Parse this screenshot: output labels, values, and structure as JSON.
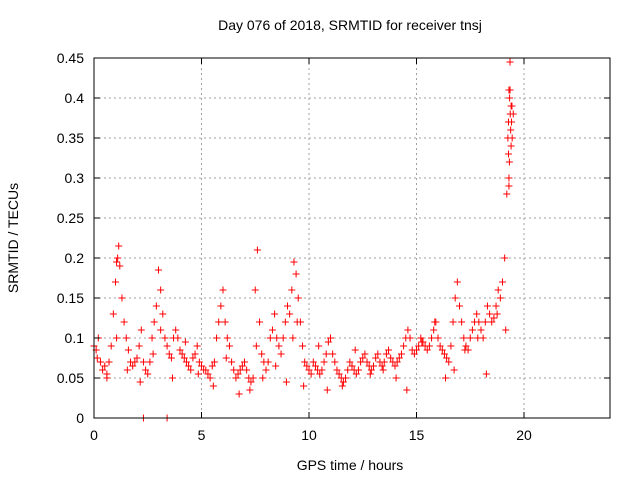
{
  "chart_data": {
    "type": "scatter",
    "title": "Day 076 of 2018, SRMTID for receiver tnsj",
    "xlabel": "GPS time / hours",
    "ylabel": "SRMTID / TECUs",
    "xlim": [
      0,
      24
    ],
    "ylim": [
      0,
      0.45
    ],
    "xticks": [
      0,
      5,
      10,
      15,
      20
    ],
    "xtick_labels": [
      "0",
      "5",
      "10",
      "15",
      "20"
    ],
    "yticks": [
      0,
      0.05,
      0.1,
      0.15,
      0.2,
      0.25,
      0.3,
      0.35,
      0.4,
      0.45
    ],
    "ytick_labels": [
      "0",
      "0.05",
      "0.1",
      "0.15",
      "0.2",
      "0.25",
      "0.3",
      "0.35",
      "0.4",
      "0.45"
    ],
    "grid": true,
    "marker": "plus",
    "colors": {
      "series": "#ff0000",
      "frame": "#000000",
      "grid": "#a0a0a0"
    },
    "series": [
      {
        "name": "SRMTID",
        "x": [
          0.0,
          0.1,
          0.2,
          0.3,
          0.4,
          0.5,
          0.6,
          0.7,
          0.8,
          0.9,
          1.0,
          1.05,
          1.1,
          1.15,
          1.2,
          1.3,
          1.4,
          1.5,
          1.6,
          1.7,
          1.8,
          1.9,
          2.0,
          2.1,
          2.2,
          2.3,
          2.4,
          2.5,
          2.6,
          2.7,
          2.8,
          2.9,
          3.0,
          3.1,
          3.2,
          3.3,
          3.4,
          3.5,
          3.6,
          3.7,
          3.8,
          3.9,
          4.0,
          4.1,
          4.2,
          4.3,
          4.4,
          4.5,
          4.6,
          4.7,
          4.8,
          4.9,
          5.0,
          5.1,
          5.2,
          5.3,
          5.4,
          5.5,
          5.6,
          5.7,
          5.8,
          5.9,
          6.0,
          6.1,
          6.2,
          6.3,
          6.4,
          6.5,
          6.6,
          6.7,
          6.8,
          6.9,
          7.0,
          7.1,
          7.2,
          7.3,
          7.4,
          7.5,
          7.6,
          7.7,
          7.8,
          7.9,
          8.0,
          8.1,
          8.2,
          8.3,
          8.4,
          8.5,
          8.6,
          8.7,
          8.8,
          8.9,
          9.0,
          9.1,
          9.2,
          9.3,
          9.4,
          9.5,
          9.6,
          9.7,
          9.8,
          9.9,
          10.0,
          10.1,
          10.2,
          10.3,
          10.4,
          10.5,
          10.6,
          10.7,
          10.8,
          10.9,
          11.0,
          11.1,
          11.2,
          11.3,
          11.4,
          11.5,
          11.6,
          11.7,
          11.8,
          11.9,
          12.0,
          12.1,
          12.2,
          12.3,
          12.4,
          12.5,
          12.6,
          12.7,
          12.8,
          12.9,
          13.0,
          13.1,
          13.2,
          13.3,
          13.4,
          13.5,
          13.6,
          13.7,
          13.8,
          13.9,
          14.0,
          14.1,
          14.2,
          14.3,
          14.4,
          14.5,
          14.6,
          14.7,
          14.8,
          14.9,
          15.0,
          15.1,
          15.2,
          15.3,
          15.4,
          15.5,
          15.6,
          15.7,
          15.8,
          15.9,
          16.0,
          16.1,
          16.2,
          16.3,
          16.4,
          16.5,
          16.6,
          16.7,
          16.8,
          16.9,
          17.0,
          17.1,
          17.2,
          17.3,
          17.4,
          17.5,
          17.6,
          17.7,
          17.8,
          17.9,
          18.0,
          18.1,
          18.2,
          18.3,
          18.4,
          18.5,
          18.6,
          18.7,
          18.8,
          18.9,
          19.0,
          19.1,
          19.2,
          19.25,
          19.3,
          19.35,
          19.4,
          19.45,
          19.5,
          2.3,
          3.4,
          0.15,
          0.6,
          1.05,
          1.55,
          2.15,
          2.75,
          3.1,
          3.65,
          4.25,
          4.85,
          5.55,
          6.15,
          6.75,
          7.25,
          7.55,
          7.85,
          8.45,
          8.95,
          9.25,
          9.45,
          9.75,
          10.45,
          10.85,
          11.55,
          12.15,
          12.85,
          13.45,
          14.05,
          14.55,
          15.25,
          15.85,
          16.35,
          16.75,
          17.25,
          17.85,
          18.25,
          18.75,
          19.15,
          19.3,
          19.32,
          19.38,
          19.42,
          19.28,
          19.33,
          19.36,
          19.4,
          19.44,
          19.3,
          19.35,
          19.28
        ],
        "y": [
          0.09,
          0.085,
          0.1,
          0.07,
          0.06,
          0.065,
          0.055,
          0.07,
          0.09,
          0.13,
          0.17,
          0.195,
          0.2,
          0.215,
          0.19,
          0.15,
          0.12,
          0.1,
          0.085,
          0.07,
          0.065,
          0.07,
          0.075,
          0.09,
          0.11,
          0.07,
          0.06,
          0.055,
          0.07,
          0.1,
          0.12,
          0.14,
          0.185,
          0.16,
          0.13,
          0.1,
          0.09,
          0.08,
          0.075,
          0.1,
          0.11,
          0.1,
          0.085,
          0.08,
          0.075,
          0.07,
          0.065,
          0.06,
          0.075,
          0.08,
          0.09,
          0.07,
          0.065,
          0.06,
          0.06,
          0.055,
          0.05,
          0.065,
          0.07,
          0.1,
          0.12,
          0.14,
          0.16,
          0.12,
          0.1,
          0.09,
          0.07,
          0.06,
          0.05,
          0.055,
          0.06,
          0.065,
          0.07,
          0.06,
          0.05,
          0.045,
          0.05,
          0.16,
          0.21,
          0.12,
          0.08,
          0.07,
          0.06,
          0.07,
          0.1,
          0.11,
          0.13,
          0.1,
          0.09,
          0.08,
          0.1,
          0.12,
          0.14,
          0.13,
          0.16,
          0.195,
          0.18,
          0.15,
          0.12,
          0.09,
          0.07,
          0.065,
          0.06,
          0.055,
          0.07,
          0.065,
          0.06,
          0.055,
          0.06,
          0.07,
          0.08,
          0.095,
          0.1,
          0.08,
          0.07,
          0.06,
          0.055,
          0.05,
          0.045,
          0.05,
          0.06,
          0.07,
          0.065,
          0.06,
          0.055,
          0.06,
          0.07,
          0.075,
          0.08,
          0.07,
          0.065,
          0.06,
          0.065,
          0.075,
          0.08,
          0.07,
          0.065,
          0.07,
          0.08,
          0.085,
          0.075,
          0.07,
          0.065,
          0.07,
          0.075,
          0.08,
          0.09,
          0.1,
          0.11,
          0.1,
          0.085,
          0.08,
          0.085,
          0.09,
          0.1,
          0.095,
          0.09,
          0.085,
          0.09,
          0.1,
          0.11,
          0.12,
          0.1,
          0.09,
          0.085,
          0.08,
          0.075,
          0.07,
          0.09,
          0.12,
          0.15,
          0.17,
          0.14,
          0.12,
          0.1,
          0.09,
          0.085,
          0.1,
          0.11,
          0.12,
          0.13,
          0.12,
          0.11,
          0.1,
          0.12,
          0.14,
          0.13,
          0.12,
          0.125,
          0.14,
          0.16,
          0.15,
          0.17,
          0.2,
          0.28,
          0.35,
          0.41,
          0.445,
          0.39,
          0.35,
          0.38,
          0.0,
          0.0,
          0.075,
          0.05,
          0.1,
          0.06,
          0.045,
          0.08,
          0.11,
          0.05,
          0.095,
          0.055,
          0.04,
          0.075,
          0.03,
          0.035,
          0.09,
          0.05,
          0.065,
          0.045,
          0.1,
          0.12,
          0.04,
          0.09,
          0.035,
          0.04,
          0.085,
          0.055,
          0.06,
          0.05,
          0.035,
          0.095,
          0.12,
          0.05,
          0.06,
          0.085,
          0.1,
          0.055,
          0.13,
          0.11,
          0.3,
          0.32,
          0.36,
          0.37,
          0.33,
          0.4,
          0.38,
          0.34,
          0.39,
          0.29,
          0.41,
          0.37
        ]
      }
    ]
  }
}
